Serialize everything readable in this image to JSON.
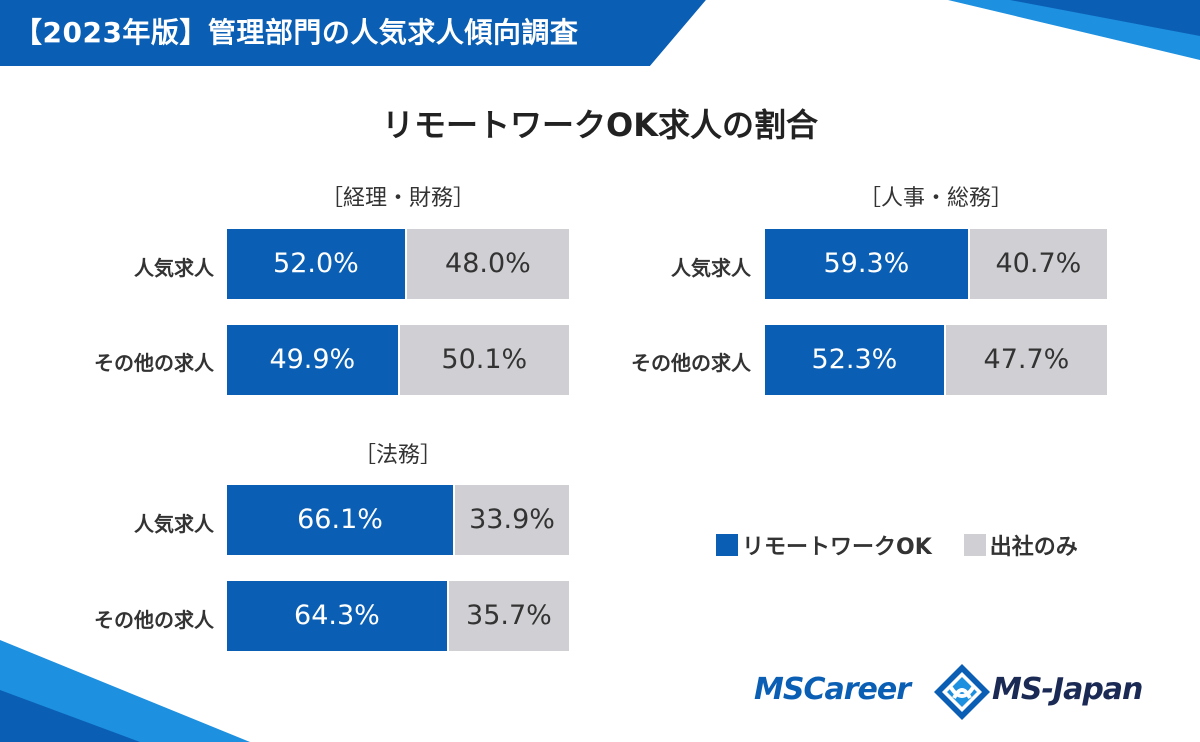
{
  "header": {
    "banner_text": "【2023年版】管理部門の人気求人傾向調査"
  },
  "colors": {
    "remote": "#0a5fb4",
    "office": "#d0d0d4",
    "banner": "#0a5fb4",
    "accent_light": "#1e90e0"
  },
  "chart_data": {
    "type": "bar",
    "stacked": true,
    "orientation": "horizontal",
    "title": "リモートワークOK求人の割合",
    "legend": {
      "placement": "bottom-right",
      "entries": [
        "リモートワークOK",
        "出社のみ"
      ]
    },
    "panels": [
      {
        "title": "［経理・財務］",
        "categories": [
          "人気求人",
          "その他の求人"
        ],
        "series": [
          {
            "name": "リモートワークOK",
            "values": [
              52.0,
              49.9
            ],
            "labels": [
              "52.0%",
              "49.9%"
            ]
          },
          {
            "name": "出社のみ",
            "values": [
              48.0,
              50.1
            ],
            "labels": [
              "48.0%",
              "50.1%"
            ]
          }
        ]
      },
      {
        "title": "［人事・総務］",
        "categories": [
          "人気求人",
          "その他の求人"
        ],
        "series": [
          {
            "name": "リモートワークOK",
            "values": [
              59.3,
              52.3
            ],
            "labels": [
              "59.3%",
              "52.3%"
            ]
          },
          {
            "name": "出社のみ",
            "values": [
              40.7,
              47.7
            ],
            "labels": [
              "40.7%",
              "47.7%"
            ]
          }
        ]
      },
      {
        "title": "［法務］",
        "categories": [
          "人気求人",
          "その他の求人"
        ],
        "series": [
          {
            "name": "リモートワークOK",
            "values": [
              66.1,
              64.3
            ],
            "labels": [
              "66.1%",
              "64.3%"
            ]
          },
          {
            "name": "出社のみ",
            "values": [
              33.9,
              35.7
            ],
            "labels": [
              "33.9%",
              "35.7%"
            ]
          }
        ]
      }
    ]
  },
  "footer": {
    "logo_mscareer": "MSCareer",
    "logo_msjapan": "MS-Japan"
  }
}
